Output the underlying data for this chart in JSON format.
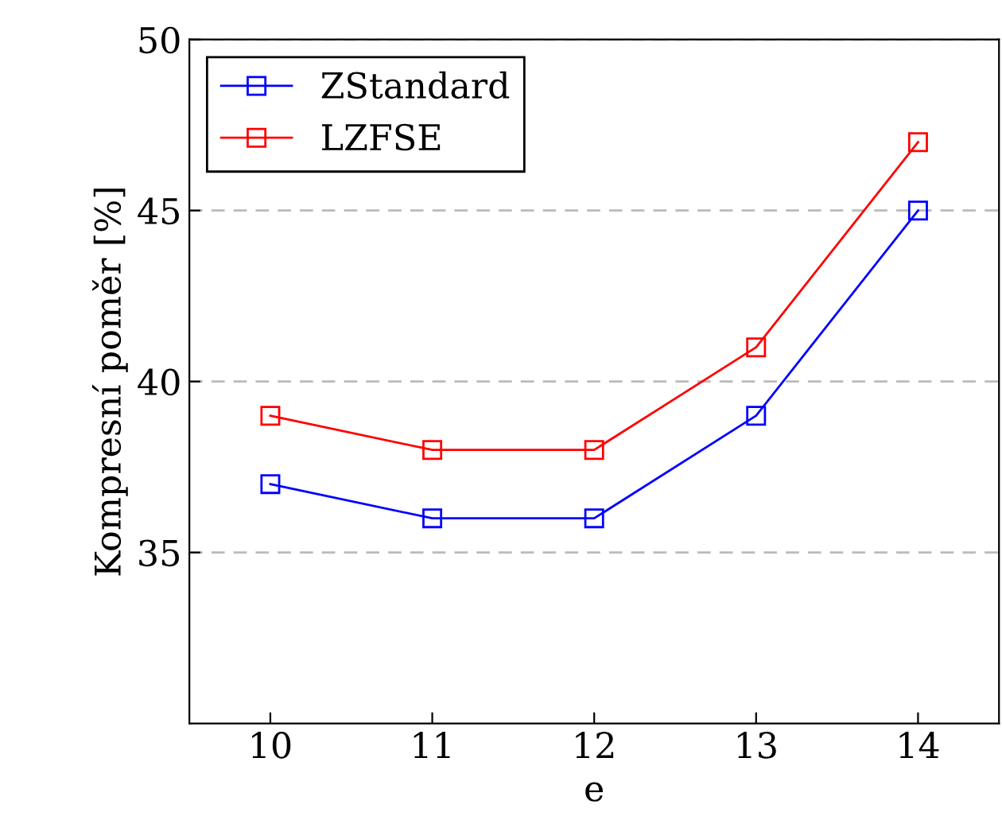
{
  "chart_data": {
    "type": "line",
    "xlabel": "e",
    "ylabel": "Kompresní poměr [%]",
    "x": [
      10,
      11,
      12,
      13,
      14
    ],
    "series": [
      {
        "name": "ZStandard",
        "color": "#0000ff",
        "values": [
          37,
          36,
          36,
          39,
          45
        ]
      },
      {
        "name": "LZFSE",
        "color": "#ff0000",
        "values": [
          39,
          38,
          38,
          41,
          47
        ]
      }
    ],
    "xlim": [
      9.5,
      14.5
    ],
    "xticks": [
      10,
      11,
      12,
      13,
      14
    ],
    "ylim": [
      30,
      50
    ],
    "yticks": [
      35,
      40,
      45,
      50
    ],
    "grid": "y",
    "legend": "top left",
    "marker": "square",
    "line_style": "solid"
  }
}
